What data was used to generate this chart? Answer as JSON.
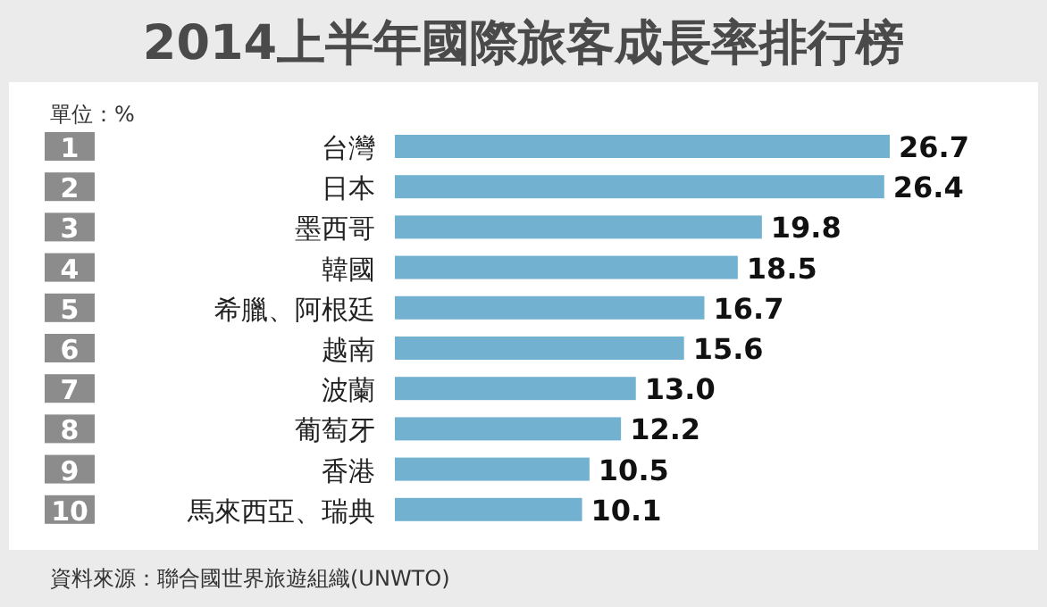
{
  "chart_data": {
    "type": "bar",
    "orientation": "horizontal",
    "title": "2014上半年國際旅客成長率排行榜",
    "categories": [
      "台灣",
      "日本",
      "墨西哥",
      "韓國",
      "希臘、阿根廷",
      "越南",
      "波蘭",
      "葡萄牙",
      "香港",
      "馬來西亞、瑞典"
    ],
    "values": [
      26.7,
      26.4,
      19.8,
      18.5,
      16.7,
      15.6,
      13.0,
      12.2,
      10.5,
      10.1
    ],
    "value_labels": [
      "26.7",
      "26.4",
      "19.8",
      "18.5",
      "16.7",
      "15.6",
      "13.0",
      "12.2",
      "10.5",
      "10.1"
    ],
    "color": "#72b2d0",
    "annotations": [
      "單位：%",
      "資料來源：聯合國世界旅遊組織(UNWTO)",
      "1",
      "2",
      "3",
      "4",
      "5",
      "6",
      "7",
      "8",
      "9",
      "10"
    ]
  }
}
